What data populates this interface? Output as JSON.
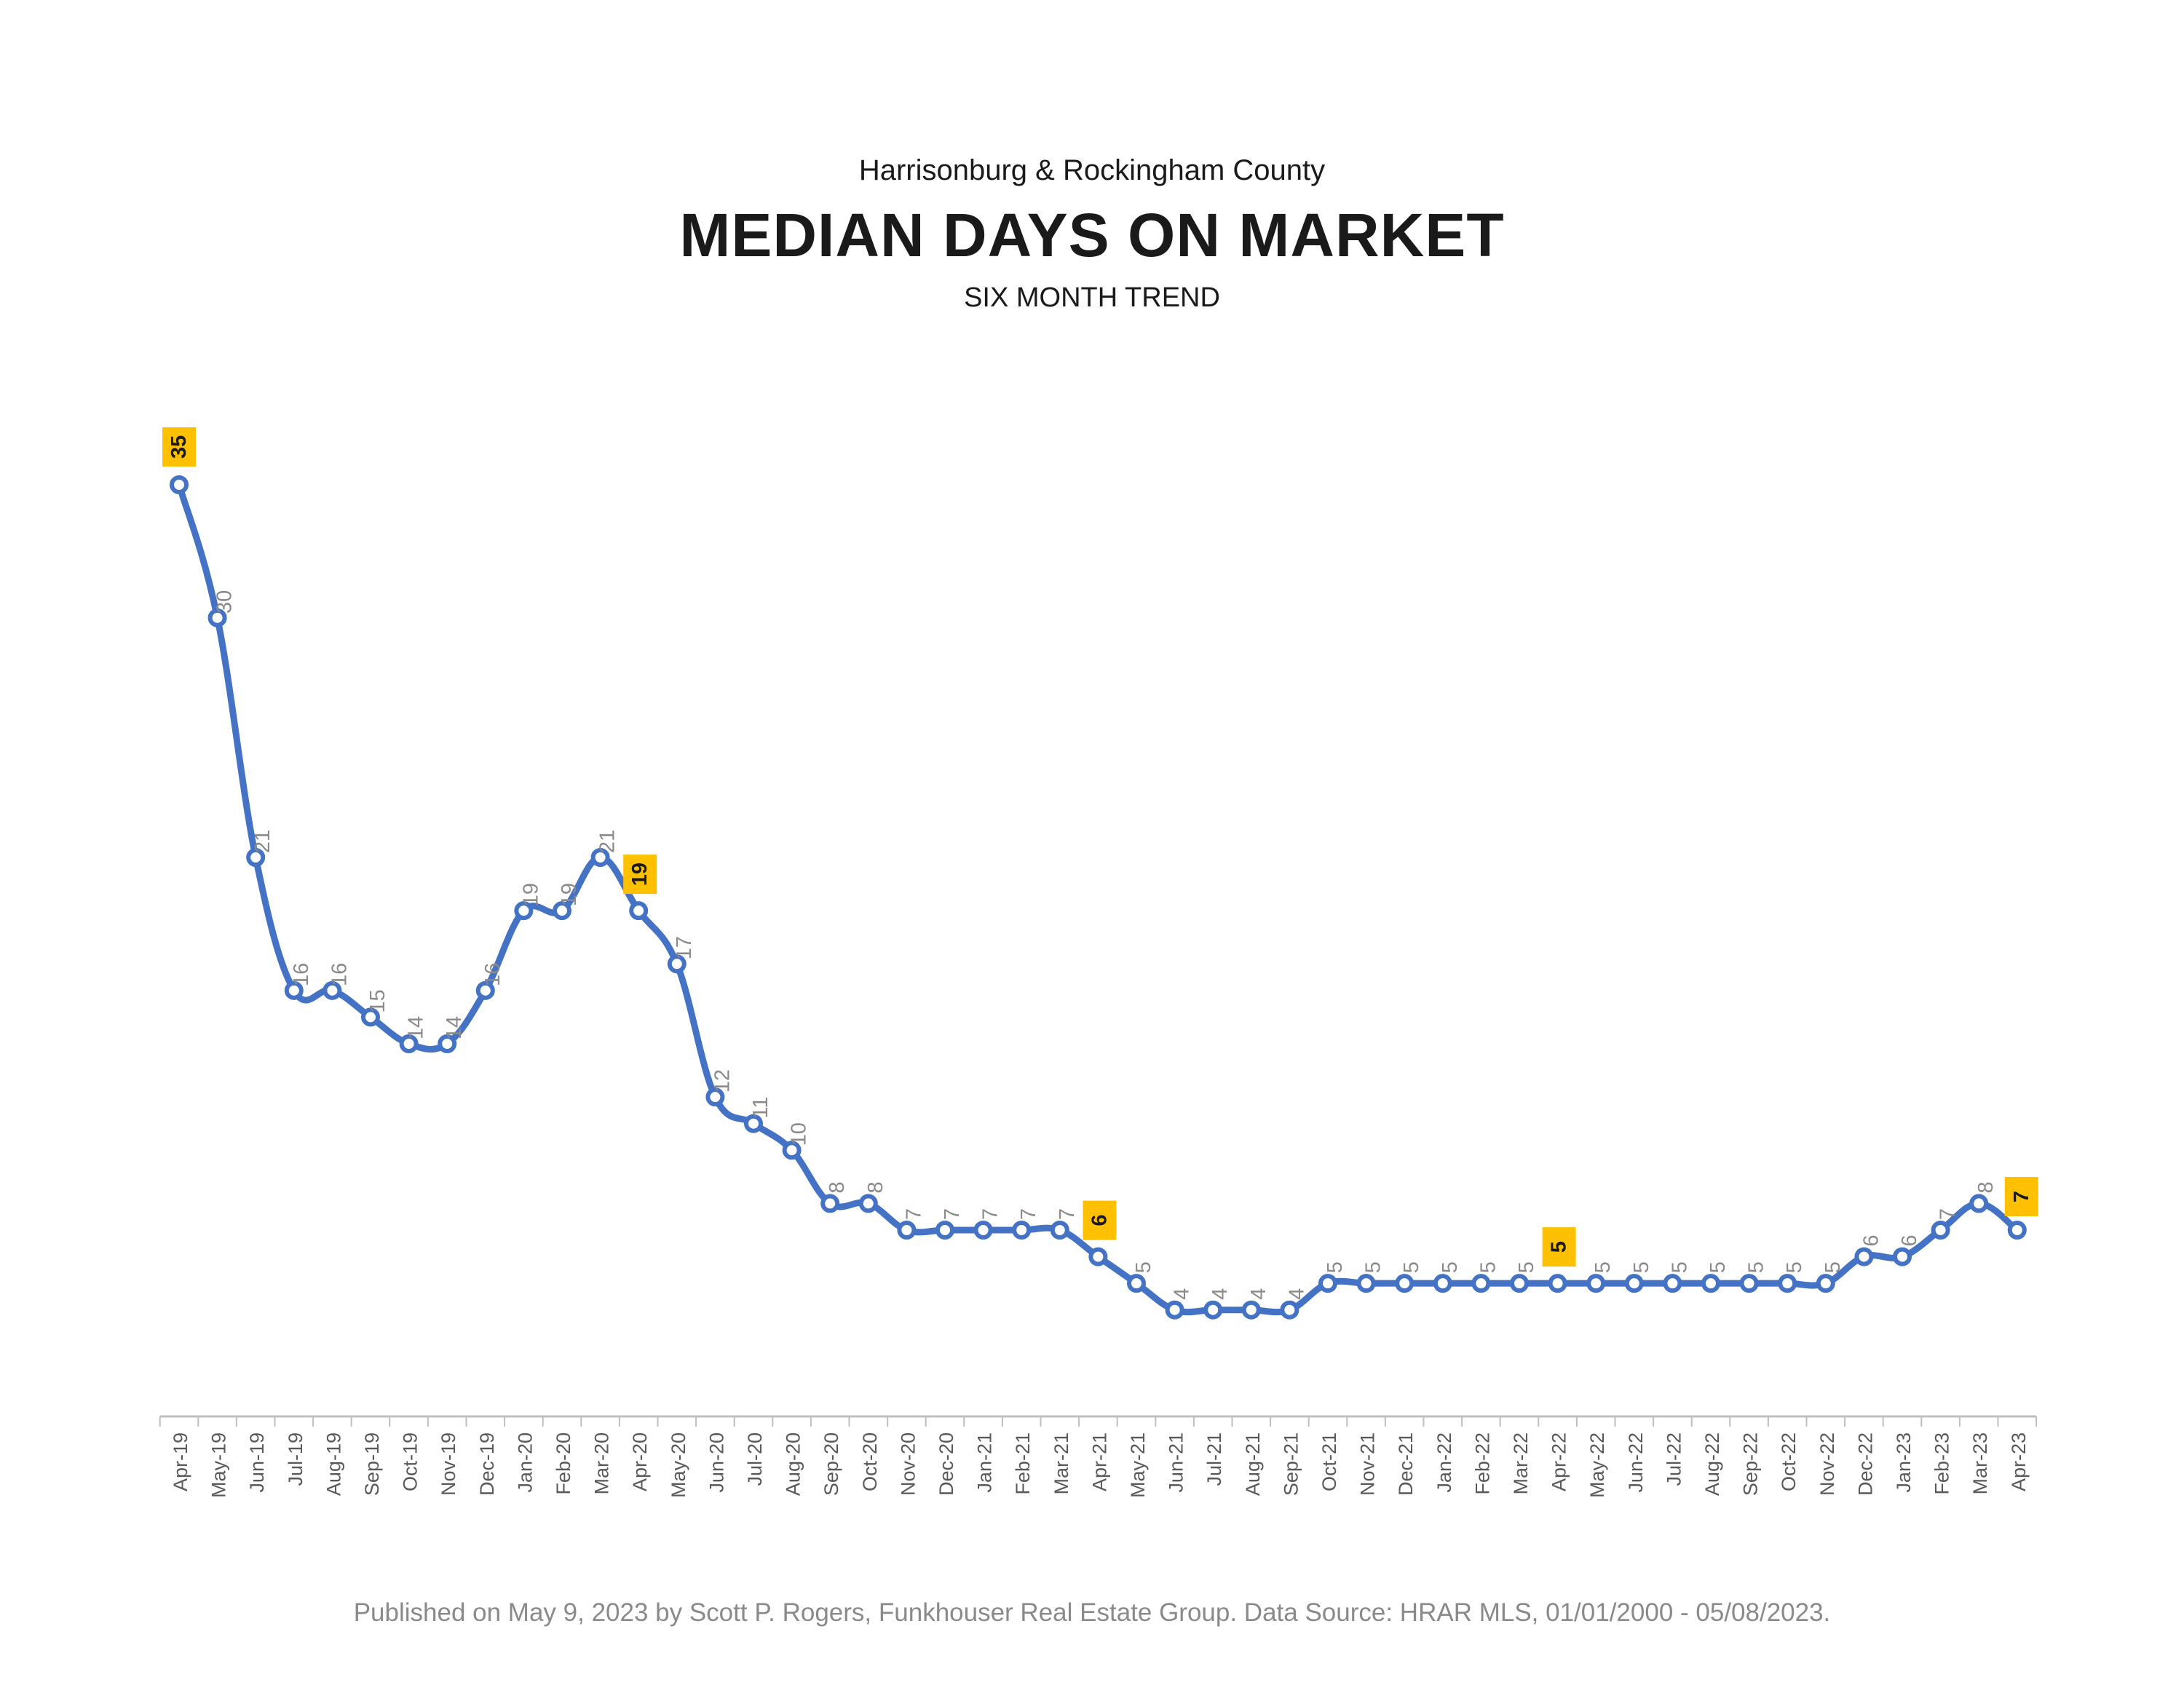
{
  "header": {
    "supertitle": "Harrisonburg & Rockingham County",
    "title": "MEDIAN DAYS ON MARKET",
    "subtitle": "SIX MONTH TREND"
  },
  "footer": {
    "text": "Published on May 9, 2023 by Scott P. Rogers, Funkhouser Real Estate Group. Data Source: HRAR MLS, 01/01/2000 - 05/08/2023."
  },
  "colors": {
    "line": "#4472C4",
    "highlight": "#FFC000",
    "label": "#8a8a8a",
    "axis": "#bfbfbf"
  },
  "chart_data": {
    "type": "line",
    "title": "MEDIAN DAYS ON MARKET",
    "subtitle": "SIX MONTH TREND",
    "xlabel": "",
    "ylabel": "",
    "grid": false,
    "legend": "none",
    "categories": [
      "Apr-19",
      "May-19",
      "Jun-19",
      "Jul-19",
      "Aug-19",
      "Sep-19",
      "Oct-19",
      "Nov-19",
      "Dec-19",
      "Jan-20",
      "Feb-20",
      "Mar-20",
      "Apr-20",
      "May-20",
      "Jun-20",
      "Jul-20",
      "Aug-20",
      "Sep-20",
      "Oct-20",
      "Nov-20",
      "Dec-20",
      "Jan-21",
      "Feb-21",
      "Mar-21",
      "Apr-21",
      "May-21",
      "Jun-21",
      "Jul-21",
      "Aug-21",
      "Sep-21",
      "Oct-21",
      "Nov-21",
      "Dec-21",
      "Jan-22",
      "Feb-22",
      "Mar-22",
      "Apr-22",
      "May-22",
      "Jun-22",
      "Jul-22",
      "Aug-22",
      "Sep-22",
      "Oct-22",
      "Nov-22",
      "Dec-22",
      "Jan-23",
      "Feb-23",
      "Mar-23",
      "Apr-23"
    ],
    "series": [
      {
        "values": [
          35,
          30,
          21,
          16,
          16,
          15,
          14,
          14,
          16,
          19,
          19,
          21,
          19,
          17,
          12,
          11,
          10,
          8,
          8,
          7,
          7,
          7,
          7,
          7,
          6,
          5,
          4,
          4,
          4,
          4,
          5,
          5,
          5,
          5,
          5,
          5,
          5,
          5,
          5,
          5,
          5,
          5,
          5,
          5,
          6,
          6,
          7,
          8,
          7
        ]
      }
    ],
    "highlighted_labels": [
      "Apr-19",
      "Apr-20",
      "Apr-21",
      "Apr-22",
      "Apr-23"
    ],
    "ylim": [
      0,
      35
    ]
  }
}
